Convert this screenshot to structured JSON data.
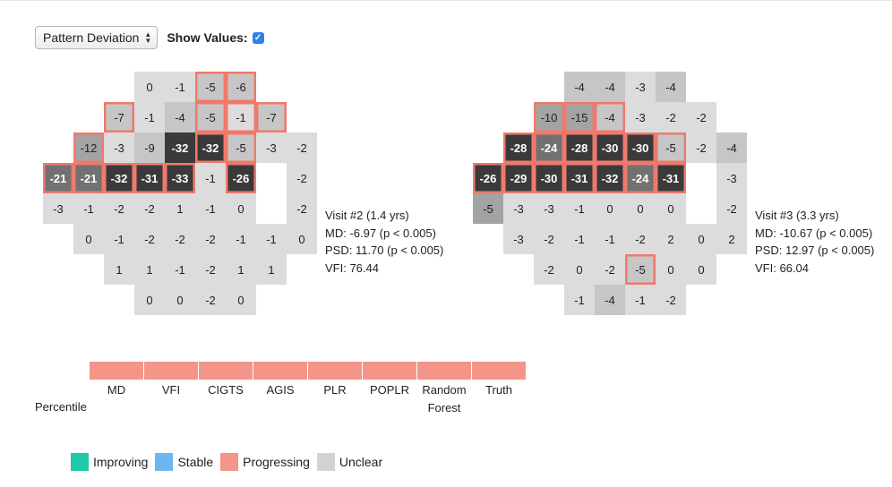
{
  "controls": {
    "field_type": "Pattern Deviation",
    "show_values_label": "Show Values:",
    "show_values_checked": true
  },
  "colors": {
    "improving": "#1fc9a8",
    "stable": "#6cb8ee",
    "progressing": "#f4958a",
    "unclear": "#d3d3d3",
    "cell_light": "#dcdcdc",
    "cell_gray": "#c6c6c6",
    "cell_mid": "#a3a3a3",
    "cell_dark": "#717171",
    "cell_black": "#3a3a3a",
    "highlight_border": "#f0796c"
  },
  "fields": [
    {
      "info": [
        "Visit #2 (1.4 yrs)",
        "MD: -6.97 (p < 0.005)",
        "PSD: 11.70 (p < 0.005)",
        "VFI: 76.44"
      ],
      "cells": [
        {
          "r": 0,
          "c": 3,
          "v": "0",
          "shade": "light",
          "hl": false
        },
        {
          "r": 0,
          "c": 4,
          "v": "-1",
          "shade": "light",
          "hl": false
        },
        {
          "r": 0,
          "c": 5,
          "v": "-5",
          "shade": "gray",
          "hl": true
        },
        {
          "r": 0,
          "c": 6,
          "v": "-6",
          "shade": "gray",
          "hl": true
        },
        {
          "r": 1,
          "c": 2,
          "v": "-7",
          "shade": "gray",
          "hl": true
        },
        {
          "r": 1,
          "c": 3,
          "v": "-1",
          "shade": "light",
          "hl": false
        },
        {
          "r": 1,
          "c": 4,
          "v": "-4",
          "shade": "gray",
          "hl": false
        },
        {
          "r": 1,
          "c": 5,
          "v": "-5",
          "shade": "gray",
          "hl": true
        },
        {
          "r": 1,
          "c": 6,
          "v": "-1",
          "shade": "light",
          "hl": true
        },
        {
          "r": 1,
          "c": 7,
          "v": "-7",
          "shade": "gray",
          "hl": true
        },
        {
          "r": 2,
          "c": 1,
          "v": "-12",
          "shade": "mid",
          "hl": true
        },
        {
          "r": 2,
          "c": 2,
          "v": "-3",
          "shade": "light",
          "hl": false
        },
        {
          "r": 2,
          "c": 3,
          "v": "-9",
          "shade": "gray",
          "hl": false
        },
        {
          "r": 2,
          "c": 4,
          "v": "-32",
          "shade": "black",
          "hl": false
        },
        {
          "r": 2,
          "c": 5,
          "v": "-32",
          "shade": "black",
          "hl": true
        },
        {
          "r": 2,
          "c": 6,
          "v": "-5",
          "shade": "gray",
          "hl": true
        },
        {
          "r": 2,
          "c": 7,
          "v": "-3",
          "shade": "light",
          "hl": false
        },
        {
          "r": 2,
          "c": 8,
          "v": "-2",
          "shade": "light",
          "hl": false
        },
        {
          "r": 3,
          "c": 0,
          "v": "-21",
          "shade": "dark",
          "hl": true
        },
        {
          "r": 3,
          "c": 1,
          "v": "-21",
          "shade": "dark",
          "hl": true
        },
        {
          "r": 3,
          "c": 2,
          "v": "-32",
          "shade": "black",
          "hl": true
        },
        {
          "r": 3,
          "c": 3,
          "v": "-31",
          "shade": "black",
          "hl": true
        },
        {
          "r": 3,
          "c": 4,
          "v": "-33",
          "shade": "black",
          "hl": true
        },
        {
          "r": 3,
          "c": 5,
          "v": "-1",
          "shade": "light",
          "hl": false
        },
        {
          "r": 3,
          "c": 6,
          "v": "-26",
          "shade": "black",
          "hl": true
        },
        {
          "r": 3,
          "c": 8,
          "v": "-2",
          "shade": "light",
          "hl": false
        },
        {
          "r": 4,
          "c": 0,
          "v": "-3",
          "shade": "light",
          "hl": false
        },
        {
          "r": 4,
          "c": 1,
          "v": "-1",
          "shade": "light",
          "hl": false
        },
        {
          "r": 4,
          "c": 2,
          "v": "-2",
          "shade": "light",
          "hl": false
        },
        {
          "r": 4,
          "c": 3,
          "v": "-2",
          "shade": "light",
          "hl": false
        },
        {
          "r": 4,
          "c": 4,
          "v": "1",
          "shade": "light",
          "hl": false
        },
        {
          "r": 4,
          "c": 5,
          "v": "-1",
          "shade": "light",
          "hl": false
        },
        {
          "r": 4,
          "c": 6,
          "v": "0",
          "shade": "light",
          "hl": false
        },
        {
          "r": 4,
          "c": 8,
          "v": "-2",
          "shade": "light",
          "hl": false
        },
        {
          "r": 5,
          "c": 1,
          "v": "0",
          "shade": "light",
          "hl": false
        },
        {
          "r": 5,
          "c": 2,
          "v": "-1",
          "shade": "light",
          "hl": false
        },
        {
          "r": 5,
          "c": 3,
          "v": "-2",
          "shade": "light",
          "hl": false
        },
        {
          "r": 5,
          "c": 4,
          "v": "-2",
          "shade": "light",
          "hl": false
        },
        {
          "r": 5,
          "c": 5,
          "v": "-2",
          "shade": "light",
          "hl": false
        },
        {
          "r": 5,
          "c": 6,
          "v": "-1",
          "shade": "light",
          "hl": false
        },
        {
          "r": 5,
          "c": 7,
          "v": "-1",
          "shade": "light",
          "hl": false
        },
        {
          "r": 5,
          "c": 8,
          "v": "0",
          "shade": "light",
          "hl": false
        },
        {
          "r": 6,
          "c": 2,
          "v": "1",
          "shade": "light",
          "hl": false
        },
        {
          "r": 6,
          "c": 3,
          "v": "1",
          "shade": "light",
          "hl": false
        },
        {
          "r": 6,
          "c": 4,
          "v": "-1",
          "shade": "light",
          "hl": false
        },
        {
          "r": 6,
          "c": 5,
          "v": "-2",
          "shade": "light",
          "hl": false
        },
        {
          "r": 6,
          "c": 6,
          "v": "1",
          "shade": "light",
          "hl": false
        },
        {
          "r": 6,
          "c": 7,
          "v": "1",
          "shade": "light",
          "hl": false
        },
        {
          "r": 7,
          "c": 3,
          "v": "0",
          "shade": "light",
          "hl": false
        },
        {
          "r": 7,
          "c": 4,
          "v": "0",
          "shade": "light",
          "hl": false
        },
        {
          "r": 7,
          "c": 5,
          "v": "-2",
          "shade": "light",
          "hl": false
        },
        {
          "r": 7,
          "c": 6,
          "v": "0",
          "shade": "light",
          "hl": false
        }
      ]
    },
    {
      "info": [
        "Visit #3 (3.3 yrs)",
        "MD: -10.67 (p < 0.005)",
        "PSD: 12.97 (p < 0.005)",
        "VFI: 66.04"
      ],
      "cells": [
        {
          "r": 0,
          "c": 3,
          "v": "-4",
          "shade": "gray",
          "hl": false
        },
        {
          "r": 0,
          "c": 4,
          "v": "-4",
          "shade": "gray",
          "hl": false
        },
        {
          "r": 0,
          "c": 5,
          "v": "-3",
          "shade": "light",
          "hl": false
        },
        {
          "r": 0,
          "c": 6,
          "v": "-4",
          "shade": "gray",
          "hl": false
        },
        {
          "r": 1,
          "c": 2,
          "v": "-10",
          "shade": "mid",
          "hl": true
        },
        {
          "r": 1,
          "c": 3,
          "v": "-15",
          "shade": "mid",
          "hl": true
        },
        {
          "r": 1,
          "c": 4,
          "v": "-4",
          "shade": "gray",
          "hl": true
        },
        {
          "r": 1,
          "c": 5,
          "v": "-3",
          "shade": "light",
          "hl": false
        },
        {
          "r": 1,
          "c": 6,
          "v": "-2",
          "shade": "light",
          "hl": false
        },
        {
          "r": 1,
          "c": 7,
          "v": "-2",
          "shade": "light",
          "hl": false
        },
        {
          "r": 2,
          "c": 1,
          "v": "-28",
          "shade": "black",
          "hl": true
        },
        {
          "r": 2,
          "c": 2,
          "v": "-24",
          "shade": "dark",
          "hl": true
        },
        {
          "r": 2,
          "c": 3,
          "v": "-28",
          "shade": "black",
          "hl": true
        },
        {
          "r": 2,
          "c": 4,
          "v": "-30",
          "shade": "black",
          "hl": true
        },
        {
          "r": 2,
          "c": 5,
          "v": "-30",
          "shade": "black",
          "hl": true
        },
        {
          "r": 2,
          "c": 6,
          "v": "-5",
          "shade": "gray",
          "hl": true
        },
        {
          "r": 2,
          "c": 7,
          "v": "-2",
          "shade": "light",
          "hl": false
        },
        {
          "r": 2,
          "c": 8,
          "v": "-4",
          "shade": "gray",
          "hl": false
        },
        {
          "r": 3,
          "c": 0,
          "v": "-26",
          "shade": "black",
          "hl": true
        },
        {
          "r": 3,
          "c": 1,
          "v": "-29",
          "shade": "black",
          "hl": true
        },
        {
          "r": 3,
          "c": 2,
          "v": "-30",
          "shade": "black",
          "hl": true
        },
        {
          "r": 3,
          "c": 3,
          "v": "-31",
          "shade": "black",
          "hl": true
        },
        {
          "r": 3,
          "c": 4,
          "v": "-32",
          "shade": "black",
          "hl": true
        },
        {
          "r": 3,
          "c": 5,
          "v": "-24",
          "shade": "dark",
          "hl": true
        },
        {
          "r": 3,
          "c": 6,
          "v": "-31",
          "shade": "black",
          "hl": true
        },
        {
          "r": 3,
          "c": 8,
          "v": "-3",
          "shade": "light",
          "hl": false
        },
        {
          "r": 4,
          "c": 0,
          "v": "-5",
          "shade": "mid",
          "hl": false
        },
        {
          "r": 4,
          "c": 1,
          "v": "-3",
          "shade": "light",
          "hl": false
        },
        {
          "r": 4,
          "c": 2,
          "v": "-3",
          "shade": "light",
          "hl": false
        },
        {
          "r": 4,
          "c": 3,
          "v": "-1",
          "shade": "light",
          "hl": false
        },
        {
          "r": 4,
          "c": 4,
          "v": "0",
          "shade": "light",
          "hl": false
        },
        {
          "r": 4,
          "c": 5,
          "v": "0",
          "shade": "light",
          "hl": false
        },
        {
          "r": 4,
          "c": 6,
          "v": "0",
          "shade": "light",
          "hl": false
        },
        {
          "r": 4,
          "c": 8,
          "v": "-2",
          "shade": "light",
          "hl": false
        },
        {
          "r": 5,
          "c": 1,
          "v": "-3",
          "shade": "light",
          "hl": false
        },
        {
          "r": 5,
          "c": 2,
          "v": "-2",
          "shade": "light",
          "hl": false
        },
        {
          "r": 5,
          "c": 3,
          "v": "-1",
          "shade": "light",
          "hl": false
        },
        {
          "r": 5,
          "c": 4,
          "v": "-1",
          "shade": "light",
          "hl": false
        },
        {
          "r": 5,
          "c": 5,
          "v": "-2",
          "shade": "light",
          "hl": false
        },
        {
          "r": 5,
          "c": 6,
          "v": "2",
          "shade": "light",
          "hl": false
        },
        {
          "r": 5,
          "c": 7,
          "v": "0",
          "shade": "light",
          "hl": false
        },
        {
          "r": 5,
          "c": 8,
          "v": "2",
          "shade": "light",
          "hl": false
        },
        {
          "r": 6,
          "c": 2,
          "v": "-2",
          "shade": "light",
          "hl": false
        },
        {
          "r": 6,
          "c": 3,
          "v": "0",
          "shade": "light",
          "hl": false
        },
        {
          "r": 6,
          "c": 4,
          "v": "-2",
          "shade": "light",
          "hl": false
        },
        {
          "r": 6,
          "c": 5,
          "v": "-5",
          "shade": "gray",
          "hl": true
        },
        {
          "r": 6,
          "c": 6,
          "v": "0",
          "shade": "light",
          "hl": false
        },
        {
          "r": 6,
          "c": 7,
          "v": "0",
          "shade": "light",
          "hl": false
        },
        {
          "r": 7,
          "c": 3,
          "v": "-1",
          "shade": "light",
          "hl": false
        },
        {
          "r": 7,
          "c": 4,
          "v": "-4",
          "shade": "gray",
          "hl": false
        },
        {
          "r": 7,
          "c": 5,
          "v": "-1",
          "shade": "light",
          "hl": false
        },
        {
          "r": 7,
          "c": 6,
          "v": "-2",
          "shade": "light",
          "hl": false
        }
      ]
    }
  ],
  "models": {
    "percentile_label": "Percentile",
    "items": [
      {
        "label": "MD",
        "status": "progressing"
      },
      {
        "label": "VFI",
        "status": "progressing"
      },
      {
        "label": "CIGTS",
        "status": "progressing"
      },
      {
        "label": "AGIS",
        "status": "progressing"
      },
      {
        "label": "PLR",
        "status": "progressing"
      },
      {
        "label": "POPLR",
        "status": "progressing"
      },
      {
        "label": "Random Forest",
        "status": "progressing"
      },
      {
        "label": "Truth",
        "status": "progressing"
      }
    ]
  },
  "legend": [
    {
      "label": "Improving",
      "color": "#1fc9a8"
    },
    {
      "label": "Stable",
      "color": "#6cb8ee"
    },
    {
      "label": "Progressing",
      "color": "#f4958a"
    },
    {
      "label": "Unclear",
      "color": "#d3d3d3"
    }
  ]
}
